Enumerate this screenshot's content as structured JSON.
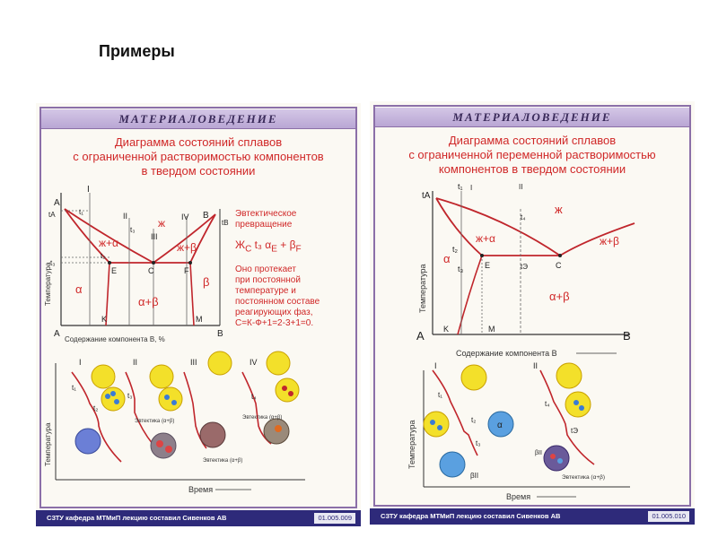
{
  "slide_title": "Примеры",
  "left": {
    "header": "МАТЕРИАЛОВЕДЕНИЕ",
    "title_lines": [
      "Диаграмма состояний сплавов",
      "с ограниченной растворимостью компонентов",
      "в твердом состоянии"
    ],
    "side_lines": [
      "Эвтектическое",
      "превращение"
    ],
    "reaction": {
      "lhs": "Ж",
      "lhs_sub": "С",
      "arrow": "t₃",
      "a": "α",
      "a_sub": "E",
      "plus": "+",
      "b": "β",
      "b_sub": "F"
    },
    "desc_lines": [
      "Оно протекает",
      "при постоянной",
      "температуре и",
      "постоянном составе",
      "реагирующих фаз,",
      "С=К-Ф+1=2-3+1=0."
    ],
    "labels": {
      "A": "A",
      "B": "B",
      "tA": "tA",
      "tB": "tB",
      "t1": "t₁",
      "t2": "t₂",
      "t3": "t₃",
      "I": "I",
      "II": "II",
      "III": "III",
      "IV": "IV",
      "E": "E",
      "C": "C",
      "F": "F",
      "K": "K",
      "M": "M",
      "liquid_alpha": "ж+α",
      "liquid_beta": "ж+β",
      "zh": "ж",
      "alpha": "α",
      "beta": "β",
      "alpha_beta": "α+β",
      "y_axis": "Температура",
      "x_axis": "Содержание компонента B, %",
      "cool_y": "Температура",
      "cool_x": "Время",
      "cool_I": "I",
      "cool_II": "II",
      "cool_III": "III",
      "cool_IV": "IV",
      "cool_t1": "t₁",
      "cool_t2": "t₂",
      "cool_t3": "t₃",
      "cool_t4": "t₄",
      "eut1": "Эвтектика (α+β)",
      "eut2": "Эвтектика (α+β)",
      "eut3": "Эвтектика (α+β)"
    },
    "footer": "СЗТУ кафедра МТМиП лекцию составил Сивенков АВ",
    "code": "01.005.009"
  },
  "right": {
    "header": "МАТЕРИАЛОВЕДЕНИЕ",
    "title_lines": [
      "Диаграмма состояний сплавов",
      "с ограниченной переменной растворимостью",
      "компонентов в твердом состоянии"
    ],
    "labels": {
      "A": "A",
      "B": "B",
      "tA": "tA",
      "t1": "t₁",
      "t2": "t₂",
      "t3": "t₃",
      "t4": "t₄",
      "tE": "tЭ",
      "I": "I",
      "II": "II",
      "E": "E",
      "C": "C",
      "K": "K",
      "M": "M",
      "zh": "ж",
      "liquid_alpha": "ж+α",
      "liquid_beta": "ж+β",
      "alpha": "α",
      "alpha_beta": "α+β",
      "y_axis": "Температура",
      "x_axis": "Содержание компонента B",
      "cool_y": "Температура",
      "cool_x": "Время",
      "cool_I": "I",
      "cool_II": "II",
      "cool_t1": "t₁",
      "cool_t2": "t₂",
      "cool_t3": "t₃",
      "cool_t4": "t₄",
      "cool_tE": "tЭ",
      "beta_II": "βII",
      "alpha_grain": "α",
      "eut": "Эвтектика (α+β)"
    },
    "footer": "СЗТУ кафедра МТМиП лекцию составил Сивенков АВ",
    "code": "01.005.010"
  }
}
